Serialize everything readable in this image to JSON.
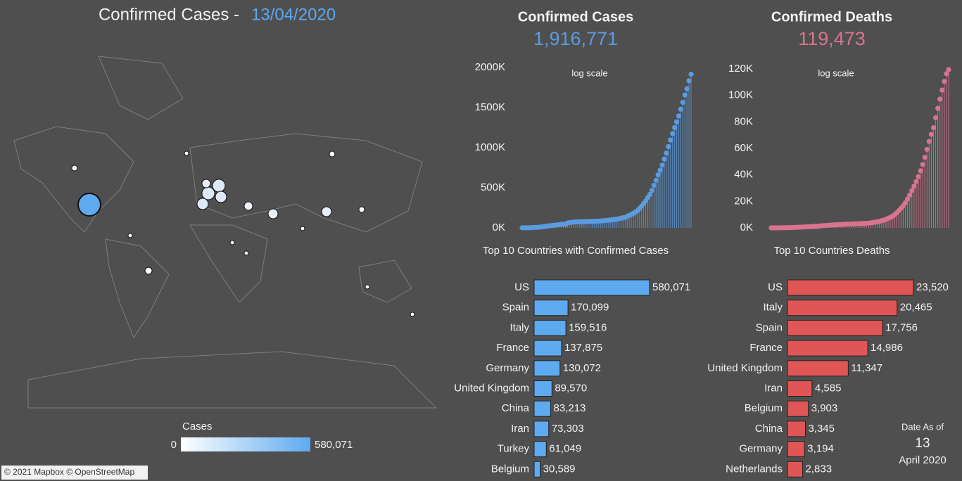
{
  "header": {
    "title": "Confirmed Cases -",
    "date": "13/04/2020"
  },
  "map": {
    "legend_title": "Cases",
    "scale_min": 0,
    "scale_max": {
      "value": 580071,
      "label": "580,071"
    },
    "attribution": "© 2021 Mapbox © OpenStreetMap"
  },
  "chart_data": [
    {
      "type": "line",
      "title": "Confirmed Cases",
      "total": {
        "value": 1916771,
        "label": "1,916,771"
      },
      "annotation": "log scale",
      "color": "#5b9be0",
      "ylim": [
        0,
        2000000
      ],
      "yticks": [
        {
          "value": 0,
          "label": "0K"
        },
        {
          "value": 500000,
          "label": "500K"
        },
        {
          "value": 1000000,
          "label": "1000K"
        },
        {
          "value": 1500000,
          "label": "1500K"
        },
        {
          "value": 2000000,
          "label": "2000K"
        }
      ],
      "values": [
        555,
        654,
        941,
        1434,
        2118,
        2927,
        5578,
        6166,
        8234,
        9927,
        12038,
        16787,
        19881,
        23892,
        27635,
        30794,
        34391,
        37120,
        40150,
        42762,
        44802,
        45221,
        60368,
        66885,
        69030,
        71224,
        73258,
        75136,
        75639,
        76197,
        76819,
        78572,
        78958,
        79561,
        80406,
        81388,
        82746,
        84112,
        86011,
        88369,
        90306,
        92840,
        95120,
        97886,
        101801,
        105847,
        109821,
        113590,
        118620,
        125875,
        128352,
        145205,
        156101,
        167454,
        181574,
        197102,
        214821,
        242570,
        272208,
        304507,
        336953,
        378235,
        418045,
        467653,
        529591,
        593291,
        660693,
        720140,
        782389,
        857487,
        932605,
        1013466,
        1095917,
        1176060,
        1249754,
        1321481,
        1396476,
        1479804,
        1565278,
        1657526,
        1735650,
        1834721,
        1916771
      ]
    },
    {
      "type": "line",
      "title": "Confirmed Deaths",
      "total": {
        "value": 119473,
        "label": "119,473"
      },
      "annotation": "log scale",
      "color": "#d9738f",
      "ylim": [
        0,
        120000
      ],
      "yticks": [
        {
          "value": 0,
          "label": "0K"
        },
        {
          "value": 20000,
          "label": "20K"
        },
        {
          "value": 40000,
          "label": "40K"
        },
        {
          "value": 60000,
          "label": "60K"
        },
        {
          "value": 80000,
          "label": "80K"
        },
        {
          "value": 100000,
          "label": "100K"
        },
        {
          "value": 120000,
          "label": "120K"
        }
      ],
      "values": [
        17,
        18,
        26,
        42,
        56,
        82,
        131,
        133,
        171,
        213,
        259,
        362,
        426,
        492,
        564,
        634,
        719,
        806,
        906,
        1013,
        1113,
        1118,
        1371,
        1523,
        1666,
        1770,
        1868,
        2007,
        2122,
        2247,
        2251,
        2458,
        2469,
        2629,
        2708,
        2770,
        2814,
        2872,
        2941,
        2996,
        3085,
        3160,
        3254,
        3348,
        3460,
        3558,
        3802,
        3988,
        4262,
        4615,
        4720,
        5404,
        5819,
        6440,
        7126,
        7905,
        8733,
        9867,
        11299,
        13018,
        14831,
        16757,
        19018,
        21800,
        24863,
        28222,
        31497,
        34965,
        38737,
        43059,
        47897,
        53246,
        59242,
        65209,
        70594,
        75611,
        83172,
        90253,
        97193,
        104032,
        110541,
        116356,
        119473
      ]
    },
    {
      "type": "hbar",
      "title": "Top 10 Countries with Confirmed Cases",
      "color": "#5eaaf0",
      "categories": [
        "US",
        "Spain",
        "Italy",
        "France",
        "Germany",
        "United Kingdom",
        "China",
        "Iran",
        "Turkey",
        "Belgium"
      ],
      "values": [
        580071,
        170099,
        159516,
        137875,
        130072,
        89570,
        83213,
        73303,
        61049,
        30589
      ],
      "value_labels": [
        "580,071",
        "170,099",
        "159,516",
        "137,875",
        "130,072",
        "89,570",
        "83,213",
        "73,303",
        "61,049",
        "30,589"
      ]
    },
    {
      "type": "hbar",
      "title": "Top 10 Countries Deaths",
      "color": "#e05555",
      "categories": [
        "US",
        "Italy",
        "Spain",
        "France",
        "United Kingdom",
        "Iran",
        "Belgium",
        "China",
        "Germany",
        "Netherlands"
      ],
      "values": [
        23520,
        20465,
        17756,
        14986,
        11347,
        4585,
        3903,
        3345,
        3194,
        2833
      ],
      "value_labels": [
        "23,520",
        "20,465",
        "17,756",
        "14,986",
        "11,347",
        "4,585",
        "3,903",
        "3,345",
        "3,194",
        "2,833"
      ]
    }
  ],
  "date_as_of": {
    "label": "Date As of",
    "day": "13",
    "month": "April 2020"
  }
}
